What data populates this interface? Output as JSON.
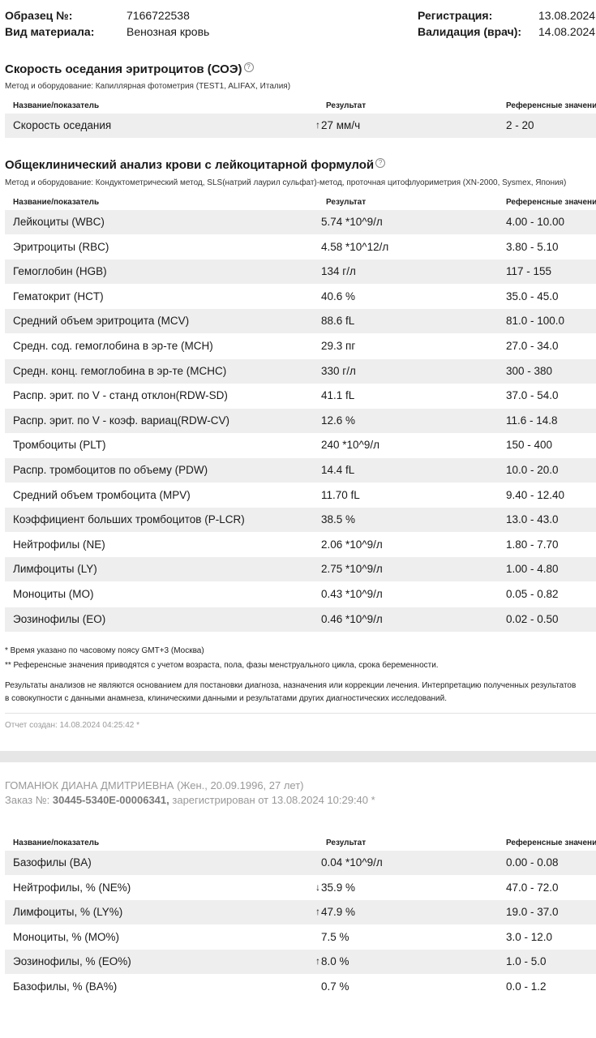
{
  "header": {
    "sample_label": "Образец №:",
    "sample_value": "7166722538",
    "material_label": "Вид материала:",
    "material_value": "Венозная кровь",
    "registration_label": "Регистрация:",
    "registration_value": "13.08.2024",
    "validation_label": "Валидация (врач):",
    "validation_value": "14.08.2024"
  },
  "columns": {
    "name": "Название/показатель",
    "result": "Результат",
    "reference": "Референсные значения"
  },
  "esr": {
    "title": "Скорость оседания эритроцитов (СОЭ)",
    "method": "Метод и оборудование: Капиллярная фотометрия (TEST1, ALIFAX, Италия)",
    "rows": [
      {
        "name": "Скорость оседания",
        "result": "27 мм/ч",
        "ref": "2 - 20",
        "flag": "↑"
      }
    ]
  },
  "cbc": {
    "title": "Общеклинический анализ крови с лейкоцитарной формулой",
    "method": "Метод и оборудование: Кондуктометрический метод, SLS(натрий лаурил сульфат)-метод, проточная цитофлуориметрия (XN-2000, Sysmex, Япония)",
    "rows": [
      {
        "name": "Лейкоциты (WBC)",
        "result": "5.74 *10^9/л",
        "ref": "4.00 - 10.00",
        "flag": ""
      },
      {
        "name": "Эритроциты (RBC)",
        "result": "4.58 *10^12/л",
        "ref": "3.80 - 5.10",
        "flag": ""
      },
      {
        "name": "Гемоглобин (HGB)",
        "result": "134 г/л",
        "ref": "117 - 155",
        "flag": ""
      },
      {
        "name": "Гематокрит (HCT)",
        "result": "40.6 %",
        "ref": "35.0 - 45.0",
        "flag": ""
      },
      {
        "name": "Средний объем эритроцита (MCV)",
        "result": "88.6 fL",
        "ref": "81.0 - 100.0",
        "flag": ""
      },
      {
        "name": "Средн. сод. гемоглобина в эр-те (MCH)",
        "result": "29.3 пг",
        "ref": "27.0 - 34.0",
        "flag": ""
      },
      {
        "name": "Средн. конц. гемоглобина в эр-те (MCHC)",
        "result": "330 г/л",
        "ref": "300 - 380",
        "flag": ""
      },
      {
        "name": "Распр. эрит. по V - станд отклон(RDW-SD)",
        "result": "41.1 fL",
        "ref": "37.0 - 54.0",
        "flag": ""
      },
      {
        "name": "Распр. эрит. по V - коэф. вариац(RDW-CV)",
        "result": "12.6 %",
        "ref": "11.6 - 14.8",
        "flag": ""
      },
      {
        "name": "Тромбоциты (PLT)",
        "result": "240 *10^9/л",
        "ref": "150 - 400",
        "flag": ""
      },
      {
        "name": "Распр. тромбоцитов по объему (PDW)",
        "result": "14.4 fL",
        "ref": "10.0 - 20.0",
        "flag": ""
      },
      {
        "name": "Средний объем тромбоцита (MPV)",
        "result": "11.70 fL",
        "ref": "9.40 - 12.40",
        "flag": ""
      },
      {
        "name": "Коэффициент больших тромбоцитов (P-LCR)",
        "result": "38.5 %",
        "ref": "13.0 - 43.0",
        "flag": ""
      },
      {
        "name": "Нейтрофилы (NE)",
        "result": "2.06 *10^9/л",
        "ref": "1.80 - 7.70",
        "flag": ""
      },
      {
        "name": "Лимфоциты (LY)",
        "result": "2.75 *10^9/л",
        "ref": "1.00 - 4.80",
        "flag": ""
      },
      {
        "name": "Моноциты (MO)",
        "result": "0.43 *10^9/л",
        "ref": "0.05 - 0.82",
        "flag": ""
      },
      {
        "name": "Эозинофилы (EO)",
        "result": "0.46 *10^9/л",
        "ref": "0.02 - 0.50",
        "flag": ""
      }
    ]
  },
  "notes": {
    "tz": "* Время указано по часовому поясу GMT+3 (Москва)",
    "ref": "** Референсные значения приводятся с учетом возраста, пола, фазы менструального цикла, срока беременности.",
    "disclaimer_1": "Результаты анализов не являются основанием для постановки диагноза, назначения или коррекции лечения. Интерпретацию полученных результатов",
    "disclaimer_2": "в совокупности с данными анамнеза, клиническими данными и результатами других диагностических исследований.",
    "created": "Отчет создан: 14.08.2024 04:25:42 *"
  },
  "page2": {
    "patient": "ГОМАНЮК ДИАНА ДМИТРИЕВНА (Жен., 20.09.1996, 27 лет)",
    "order_prefix": "Заказ №:",
    "order_number": "30445-5340E-00006341,",
    "order_suffix": "зарегистрирован от 13.08.2024 10:29:40 *",
    "rows": [
      {
        "name": "Базофилы (BA)",
        "result": "0.04 *10^9/л",
        "ref": "0.00 - 0.08",
        "flag": ""
      },
      {
        "name": "Нейтрофилы, % (NE%)",
        "result": "35.9 %",
        "ref": "47.0 - 72.0",
        "flag": "↓"
      },
      {
        "name": "Лимфоциты, % (LY%)",
        "result": "47.9 %",
        "ref": "19.0 - 37.0",
        "flag": "↑"
      },
      {
        "name": "Моноциты, % (MO%)",
        "result": "7.5 %",
        "ref": "3.0 - 12.0",
        "flag": ""
      },
      {
        "name": "Эозинофилы, % (EO%)",
        "result": "8.0 %",
        "ref": "1.0 - 5.0",
        "flag": "↑"
      },
      {
        "name": "Базофилы, % (BA%)",
        "result": "0.7 %",
        "ref": "0.0 - 1.2",
        "flag": ""
      }
    ]
  }
}
